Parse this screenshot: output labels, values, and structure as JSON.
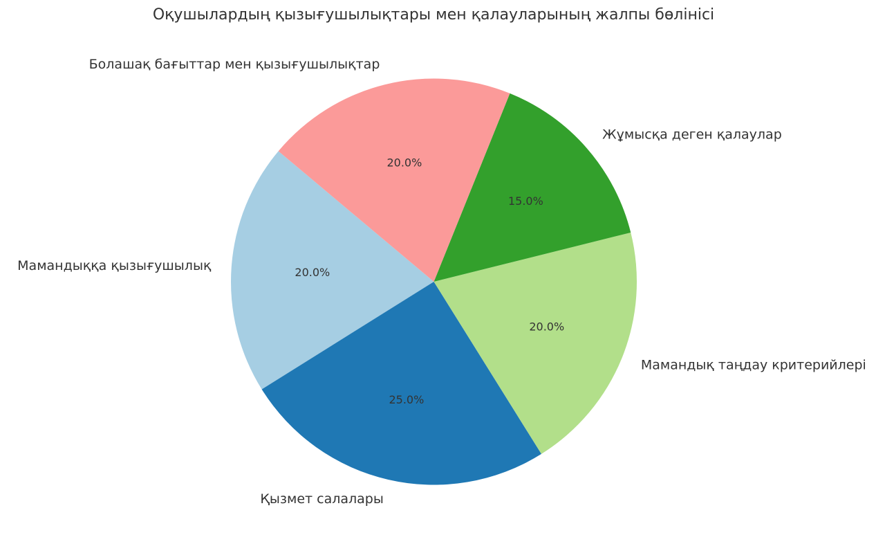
{
  "chart_data": {
    "type": "pie",
    "title": "Оқушылардың қызығушылықтары мен қалауларының жалпы бөлінісі",
    "categories": [
      "Мамандыққа қызығушылық",
      "Қызмет салалары",
      "Мамандық таңдау критерийлері",
      "Жұмысқа деген қалаулар",
      "Болашақ бағыттар мен қызығушылықтар"
    ],
    "values": [
      20,
      25,
      20,
      15,
      20
    ],
    "value_labels": [
      "20.0%",
      "25.0%",
      "20.0%",
      "15.0%",
      "20.0%"
    ],
    "colors": [
      "#a6cee3",
      "#1f78b4",
      "#b2df8a",
      "#33a02c",
      "#fb9a99"
    ]
  }
}
